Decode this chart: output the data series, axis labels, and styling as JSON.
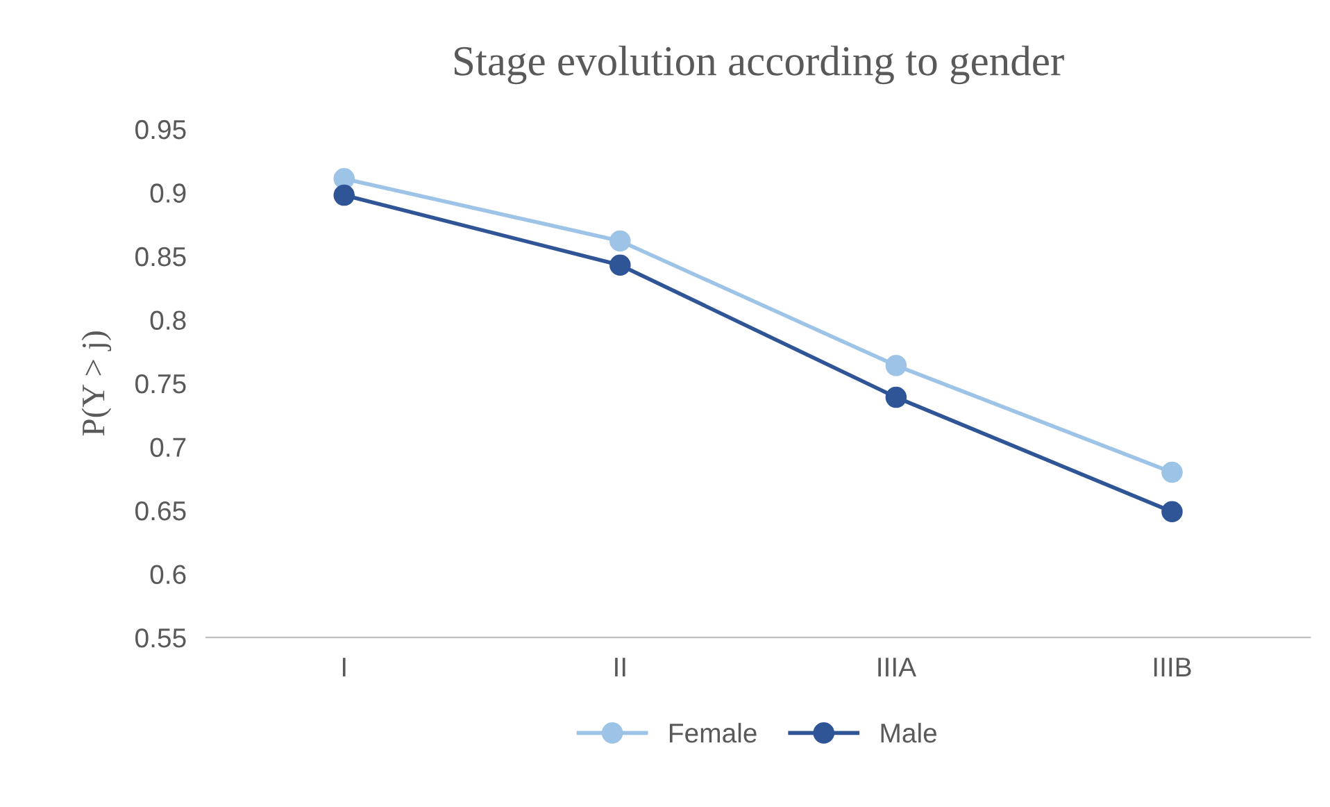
{
  "chart_data": {
    "type": "line",
    "title": "Stage evolution according to gender",
    "ylabel": "P(Y > j)",
    "categories": [
      "I",
      "II",
      "IIIA",
      "IIIB"
    ],
    "series": [
      {
        "name": "Female",
        "color": "#9dc3e6",
        "values": [
          0.911,
          0.862,
          0.764,
          0.68
        ]
      },
      {
        "name": "Male",
        "color": "#2f5597",
        "values": [
          0.898,
          0.843,
          0.739,
          0.649
        ]
      }
    ],
    "ylim": [
      0.55,
      0.95
    ],
    "yticks": [
      0.55,
      0.6,
      0.65,
      0.7,
      0.75,
      0.8,
      0.85,
      0.9,
      0.95
    ],
    "grid": false,
    "legend": "bottom",
    "marker": "circle",
    "line_style": "solid"
  }
}
